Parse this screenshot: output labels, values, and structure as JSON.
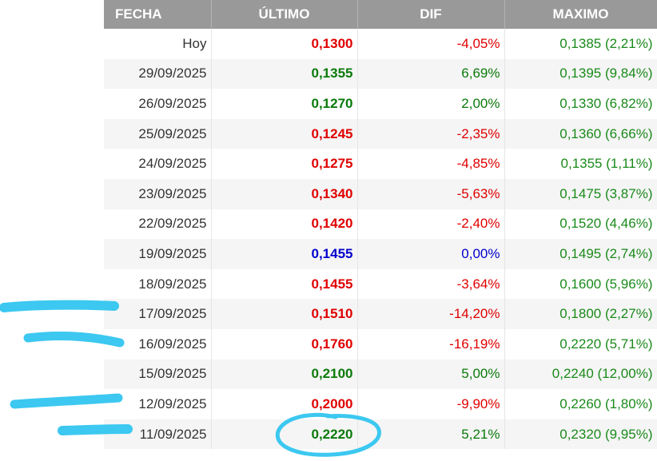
{
  "table": {
    "headers": [
      "FECHA",
      "ÚLTIMO",
      "DIF",
      "MAXIMO"
    ],
    "rows": [
      {
        "fecha": "Hoy",
        "ultimo": "0,1300",
        "dif": "-4,05%",
        "maximo": "0,1385 (2,21%)",
        "trend": "down"
      },
      {
        "fecha": "29/09/2025",
        "ultimo": "0,1355",
        "dif": "6,69%",
        "maximo": "0,1395 (9,84%)",
        "trend": "up"
      },
      {
        "fecha": "26/09/2025",
        "ultimo": "0,1270",
        "dif": "2,00%",
        "maximo": "0,1330 (6,82%)",
        "trend": "up"
      },
      {
        "fecha": "25/09/2025",
        "ultimo": "0,1245",
        "dif": "-2,35%",
        "maximo": "0,1360 (6,66%)",
        "trend": "down"
      },
      {
        "fecha": "24/09/2025",
        "ultimo": "0,1275",
        "dif": "-4,85%",
        "maximo": "0,1355 (1,11%)",
        "trend": "down"
      },
      {
        "fecha": "23/09/2025",
        "ultimo": "0,1340",
        "dif": "-5,63%",
        "maximo": "0,1475 (3,87%)",
        "trend": "down"
      },
      {
        "fecha": "22/09/2025",
        "ultimo": "0,1420",
        "dif": "-2,40%",
        "maximo": "0,1520 (4,46%)",
        "trend": "down"
      },
      {
        "fecha": "19/09/2025",
        "ultimo": "0,1455",
        "dif": "0,00%",
        "maximo": "0,1495 (2,74%)",
        "trend": "flat"
      },
      {
        "fecha": "18/09/2025",
        "ultimo": "0,1455",
        "dif": "-3,64%",
        "maximo": "0,1600 (5,96%)",
        "trend": "down"
      },
      {
        "fecha": "17/09/2025",
        "ultimo": "0,1510",
        "dif": "-14,20%",
        "maximo": "0,1800 (2,27%)",
        "trend": "down"
      },
      {
        "fecha": "16/09/2025",
        "ultimo": "0,1760",
        "dif": "-16,19%",
        "maximo": "0,2220 (5,71%)",
        "trend": "down"
      },
      {
        "fecha": "15/09/2025",
        "ultimo": "0,2100",
        "dif": "5,00%",
        "maximo": "0,2240 (12,00%)",
        "trend": "up"
      },
      {
        "fecha": "12/09/2025",
        "ultimo": "0,2000",
        "dif": "-9,90%",
        "maximo": "0,2260 (1,80%)",
        "trend": "down"
      },
      {
        "fecha": "11/09/2025",
        "ultimo": "0,2220",
        "dif": "5,21%",
        "maximo": "0,2320 (9,95%)",
        "trend": "up"
      }
    ]
  },
  "colors": {
    "up": "#0a7a0a",
    "down": "#e00000",
    "flat": "#0000cc",
    "maximo": "#1a8a1a",
    "header_bg": "#999999",
    "annotation": "#3cc8f0"
  }
}
